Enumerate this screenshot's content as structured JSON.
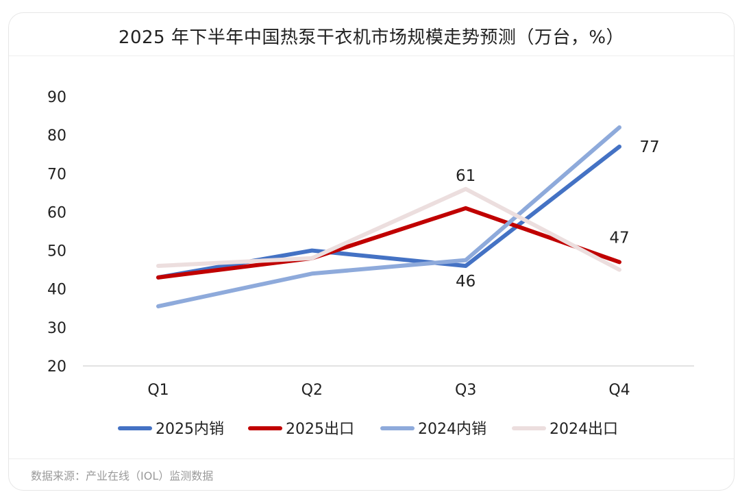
{
  "title": "2025 年下半年中国热泵干衣机市场规模走势预测（万台，%）",
  "source": "数据来源：产业在线（IOL）监测数据",
  "chart_data": {
    "type": "line",
    "title": "2025 年下半年中国热泵干衣机市场规模走势预测（万台，%）",
    "xlabel": "",
    "ylabel": "",
    "categories": [
      "Q1",
      "Q2",
      "Q3",
      "Q4"
    ],
    "ylim": [
      20,
      90
    ],
    "yticks": [
      "20",
      "30",
      "40",
      "50",
      "60",
      "70",
      "80",
      "90"
    ],
    "grid": false,
    "legend_position": "bottom",
    "series": [
      {
        "name": "2025内销",
        "values": [
          43,
          50,
          46,
          77
        ],
        "color": "#4472c4"
      },
      {
        "name": "2025出口",
        "values": [
          43,
          48,
          61,
          47
        ],
        "color": "#c00000"
      },
      {
        "name": "2024内销",
        "values": [
          35.5,
          44,
          47.5,
          82
        ],
        "color": "#8eaadb"
      },
      {
        "name": "2024出口",
        "values": [
          46,
          48,
          66,
          45
        ],
        "color": "#ecdede"
      }
    ],
    "annotations": [
      {
        "series": 0,
        "index": 2,
        "text": "46"
      },
      {
        "series": 0,
        "index": 3,
        "text": "77"
      },
      {
        "series": 1,
        "index": 2,
        "text": "61"
      },
      {
        "series": 1,
        "index": 3,
        "text": "47"
      }
    ]
  }
}
